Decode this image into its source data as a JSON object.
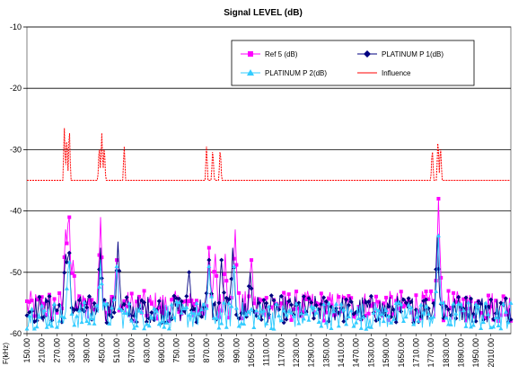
{
  "chart_data": {
    "type": "line",
    "title": "Signal LEVEL (dB)",
    "xlabel": "F(kHz)",
    "ylabel": "",
    "ylim": [
      -60,
      -10
    ],
    "yticks": [
      -10,
      -20,
      -30,
      -40,
      -50,
      -60
    ],
    "xlim": [
      150,
      2090
    ],
    "xticks": [
      "150.00",
      "210.00",
      "270.00",
      "330.00",
      "390.00",
      "450.00",
      "510.00",
      "570.00",
      "630.00",
      "690.00",
      "750.00",
      "810.00",
      "870.00",
      "930.00",
      "990.00",
      "1050.00",
      "1110.00",
      "1170.00",
      "1230.00",
      "1290.00",
      "1350.00",
      "1410.00",
      "1470.00",
      "1530.00",
      "1590.00",
      "1650.00",
      "1710.00",
      "1770.00",
      "1830.00",
      "1890.00",
      "1950.00",
      "2010.00"
    ],
    "grid": "horizontal",
    "legend_position": "top-right",
    "series": [
      {
        "name": "Ref 5 (dB)",
        "color": "#ff00ff",
        "marker": "square",
        "peaks": [
          [
            305,
            -43
          ],
          [
            318,
            -38
          ],
          [
            335,
            -48
          ],
          [
            445,
            -41
          ],
          [
            510,
            -48
          ],
          [
            880,
            -46
          ],
          [
            905,
            -47
          ],
          [
            945,
            -47
          ],
          [
            985,
            -43
          ],
          [
            1050,
            -48
          ],
          [
            1800,
            -38
          ]
        ]
      },
      {
        "name": "PLATINUM P 1(dB)",
        "color": "#000080",
        "marker": "diamond",
        "peaks": [
          [
            305,
            -47
          ],
          [
            318,
            -45
          ],
          [
            445,
            -46
          ],
          [
            515,
            -45
          ],
          [
            800,
            -50
          ],
          [
            880,
            -48
          ],
          [
            930,
            -48
          ],
          [
            975,
            -46
          ],
          [
            1045,
            -50
          ],
          [
            1795,
            -44
          ]
        ]
      },
      {
        "name": "PLATINUM P 2(dB)",
        "color": "#33ccff",
        "marker": "triangle",
        "peaks": [
          [
            318,
            -47
          ],
          [
            445,
            -48
          ],
          [
            510,
            -49
          ],
          [
            880,
            -49
          ],
          [
            980,
            -49
          ],
          [
            1800,
            -44
          ]
        ]
      },
      {
        "name": "Influence",
        "color": "#ff0000",
        "marker": "none",
        "baseline": -35,
        "peaks": [
          [
            300,
            -26.5
          ],
          [
            310,
            -27.5
          ],
          [
            320,
            -25.8
          ],
          [
            440,
            -29
          ],
          [
            450,
            -27.3
          ],
          [
            460,
            -29
          ],
          [
            540,
            -29.5
          ],
          [
            870,
            -29.5
          ],
          [
            895,
            -29.5
          ],
          [
            925,
            -29.5
          ],
          [
            1775,
            -29.5
          ],
          [
            1798,
            -27.8
          ],
          [
            1808,
            -29
          ]
        ]
      }
    ]
  }
}
